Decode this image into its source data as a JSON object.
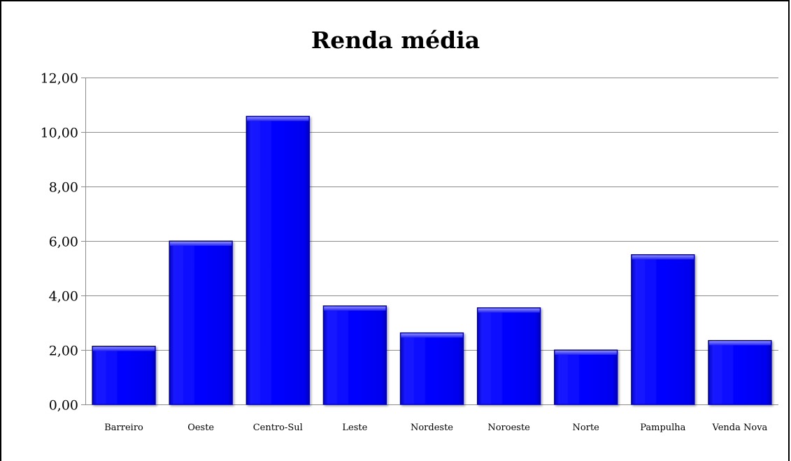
{
  "chart_data": {
    "type": "bar",
    "title": "Renda média",
    "xlabel": "",
    "ylabel": "",
    "categories": [
      "Barreiro",
      "Oeste",
      "Centro-Sul",
      "Leste",
      "Nordeste",
      "Noroeste",
      "Norte",
      "Pampulha",
      "Venda Nova"
    ],
    "values": [
      2.14,
      6.0,
      10.58,
      3.62,
      2.63,
      3.55,
      2.0,
      5.5,
      2.35
    ],
    "ylim": [
      0,
      12
    ],
    "yticks": [
      0,
      2,
      4,
      6,
      8,
      10,
      12
    ],
    "ytick_labels": [
      "0,00",
      "2,00",
      "4,00",
      "6,00",
      "8,00",
      "10,00",
      "12,00"
    ],
    "grid": true,
    "legend": "none",
    "bar_color": "#0000ff",
    "bar_edge_color": "#00008a"
  }
}
